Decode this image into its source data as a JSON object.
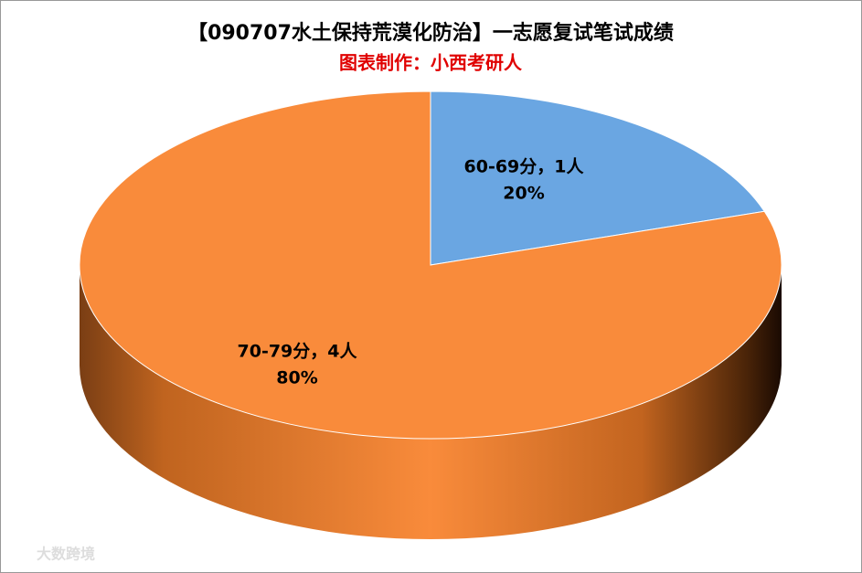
{
  "chart_data": {
    "type": "pie",
    "title": "【090707水土保持荒漠化防治】一志愿复试笔试成绩",
    "subtitle": "图表制作：小西考研人",
    "labels": [
      "60-69分，1人",
      "70-79分，4人"
    ],
    "values": [
      20,
      80
    ],
    "value_labels": [
      "20%",
      "80%"
    ],
    "colors": [
      "#6aa6e2",
      "#f98b3b"
    ],
    "watermark": "大数跨境"
  }
}
